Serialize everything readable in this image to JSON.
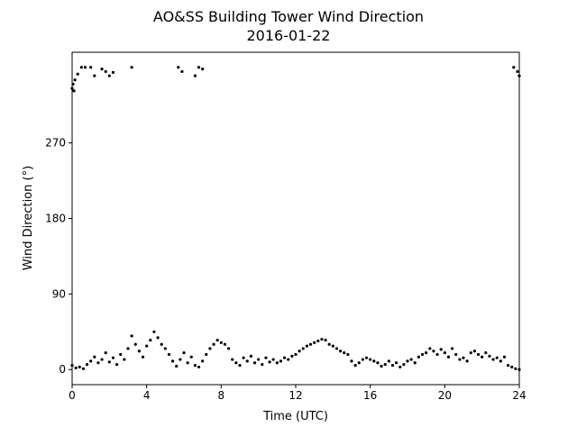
{
  "chart_data": {
    "type": "scatter",
    "title": "AO&SS Building Tower Wind Direction",
    "subtitle": "2016-01-22",
    "x_label": "Time (UTC)",
    "y_label": "Wind Direction (°)",
    "xlim": [
      0,
      24
    ],
    "xticks": [
      0,
      4,
      8,
      12,
      16,
      20,
      24
    ],
    "ylim": [
      -18,
      378
    ],
    "yticks": [
      0,
      90,
      180,
      270
    ],
    "series": [
      {
        "color": "#000000",
        "x": [
          0,
          0.2,
          0.4,
          0.6,
          0.8,
          1.0,
          1.2,
          1.4,
          1.6,
          1.8,
          2.0,
          2.2,
          2.4,
          2.6,
          2.8,
          3.0,
          3.2,
          3.4,
          3.6,
          3.8,
          4.0,
          4.2,
          4.4,
          4.6,
          4.8,
          5.0,
          5.2,
          5.4,
          5.6,
          5.8,
          6.0,
          6.2,
          6.4,
          6.6,
          6.8,
          7.0,
          7.2,
          7.4,
          7.6,
          7.8,
          8.0,
          8.2,
          8.4,
          8.6,
          8.8,
          9.0,
          9.2,
          9.4,
          9.6,
          9.8,
          10.0,
          10.2,
          10.4,
          10.6,
          10.8,
          11.0,
          11.2,
          11.4,
          11.6,
          11.8,
          12.0,
          12.2,
          12.4,
          12.6,
          12.8,
          13.0,
          13.2,
          13.4,
          13.6,
          13.8,
          14.0,
          14.2,
          14.4,
          14.6,
          14.8,
          15.0,
          15.2,
          15.4,
          15.6,
          15.8,
          16.0,
          16.2,
          16.4,
          16.6,
          16.8,
          17.0,
          17.2,
          17.4,
          17.6,
          17.8,
          18.0,
          18.2,
          18.4,
          18.6,
          18.8,
          19.0,
          19.2,
          19.4,
          19.6,
          19.8,
          20.0,
          20.2,
          20.4,
          20.6,
          20.8,
          21.0,
          21.2,
          21.4,
          21.6,
          21.8,
          22.0,
          22.2,
          22.4,
          22.6,
          22.8,
          23.0,
          23.2,
          23.4,
          23.6,
          23.8,
          24.0,
          0,
          0.05,
          0.1,
          0.15,
          0.3,
          0.5,
          0.7,
          1.0,
          1.2,
          1.6,
          1.8,
          2.0,
          2.2,
          3.2,
          5.7,
          5.9,
          6.6,
          6.8,
          7.0,
          23.7,
          23.9,
          24.0
        ],
        "values": [
          5,
          2,
          3,
          1,
          6,
          10,
          15,
          8,
          12,
          20,
          9,
          14,
          6,
          18,
          12,
          25,
          40,
          30,
          22,
          15,
          28,
          35,
          45,
          38,
          30,
          25,
          18,
          10,
          4,
          12,
          20,
          8,
          15,
          5,
          3,
          10,
          18,
          25,
          30,
          35,
          32,
          30,
          25,
          12,
          8,
          5,
          14,
          10,
          16,
          8,
          12,
          6,
          14,
          9,
          12,
          8,
          10,
          14,
          12,
          16,
          18,
          22,
          25,
          28,
          30,
          32,
          34,
          36,
          35,
          30,
          28,
          25,
          22,
          20,
          18,
          10,
          5,
          8,
          12,
          14,
          12,
          10,
          8,
          4,
          6,
          10,
          5,
          8,
          3,
          6,
          10,
          12,
          8,
          15,
          18,
          20,
          25,
          22,
          18,
          24,
          20,
          15,
          25,
          18,
          12,
          14,
          10,
          20,
          22,
          18,
          15,
          20,
          16,
          12,
          14,
          10,
          15,
          5,
          3,
          1,
          0,
          335,
          340,
          332,
          345,
          352,
          360,
          360,
          360,
          350,
          358,
          355,
          350,
          354,
          360,
          360,
          355,
          350,
          360,
          358,
          360,
          355,
          350
        ]
      }
    ]
  }
}
